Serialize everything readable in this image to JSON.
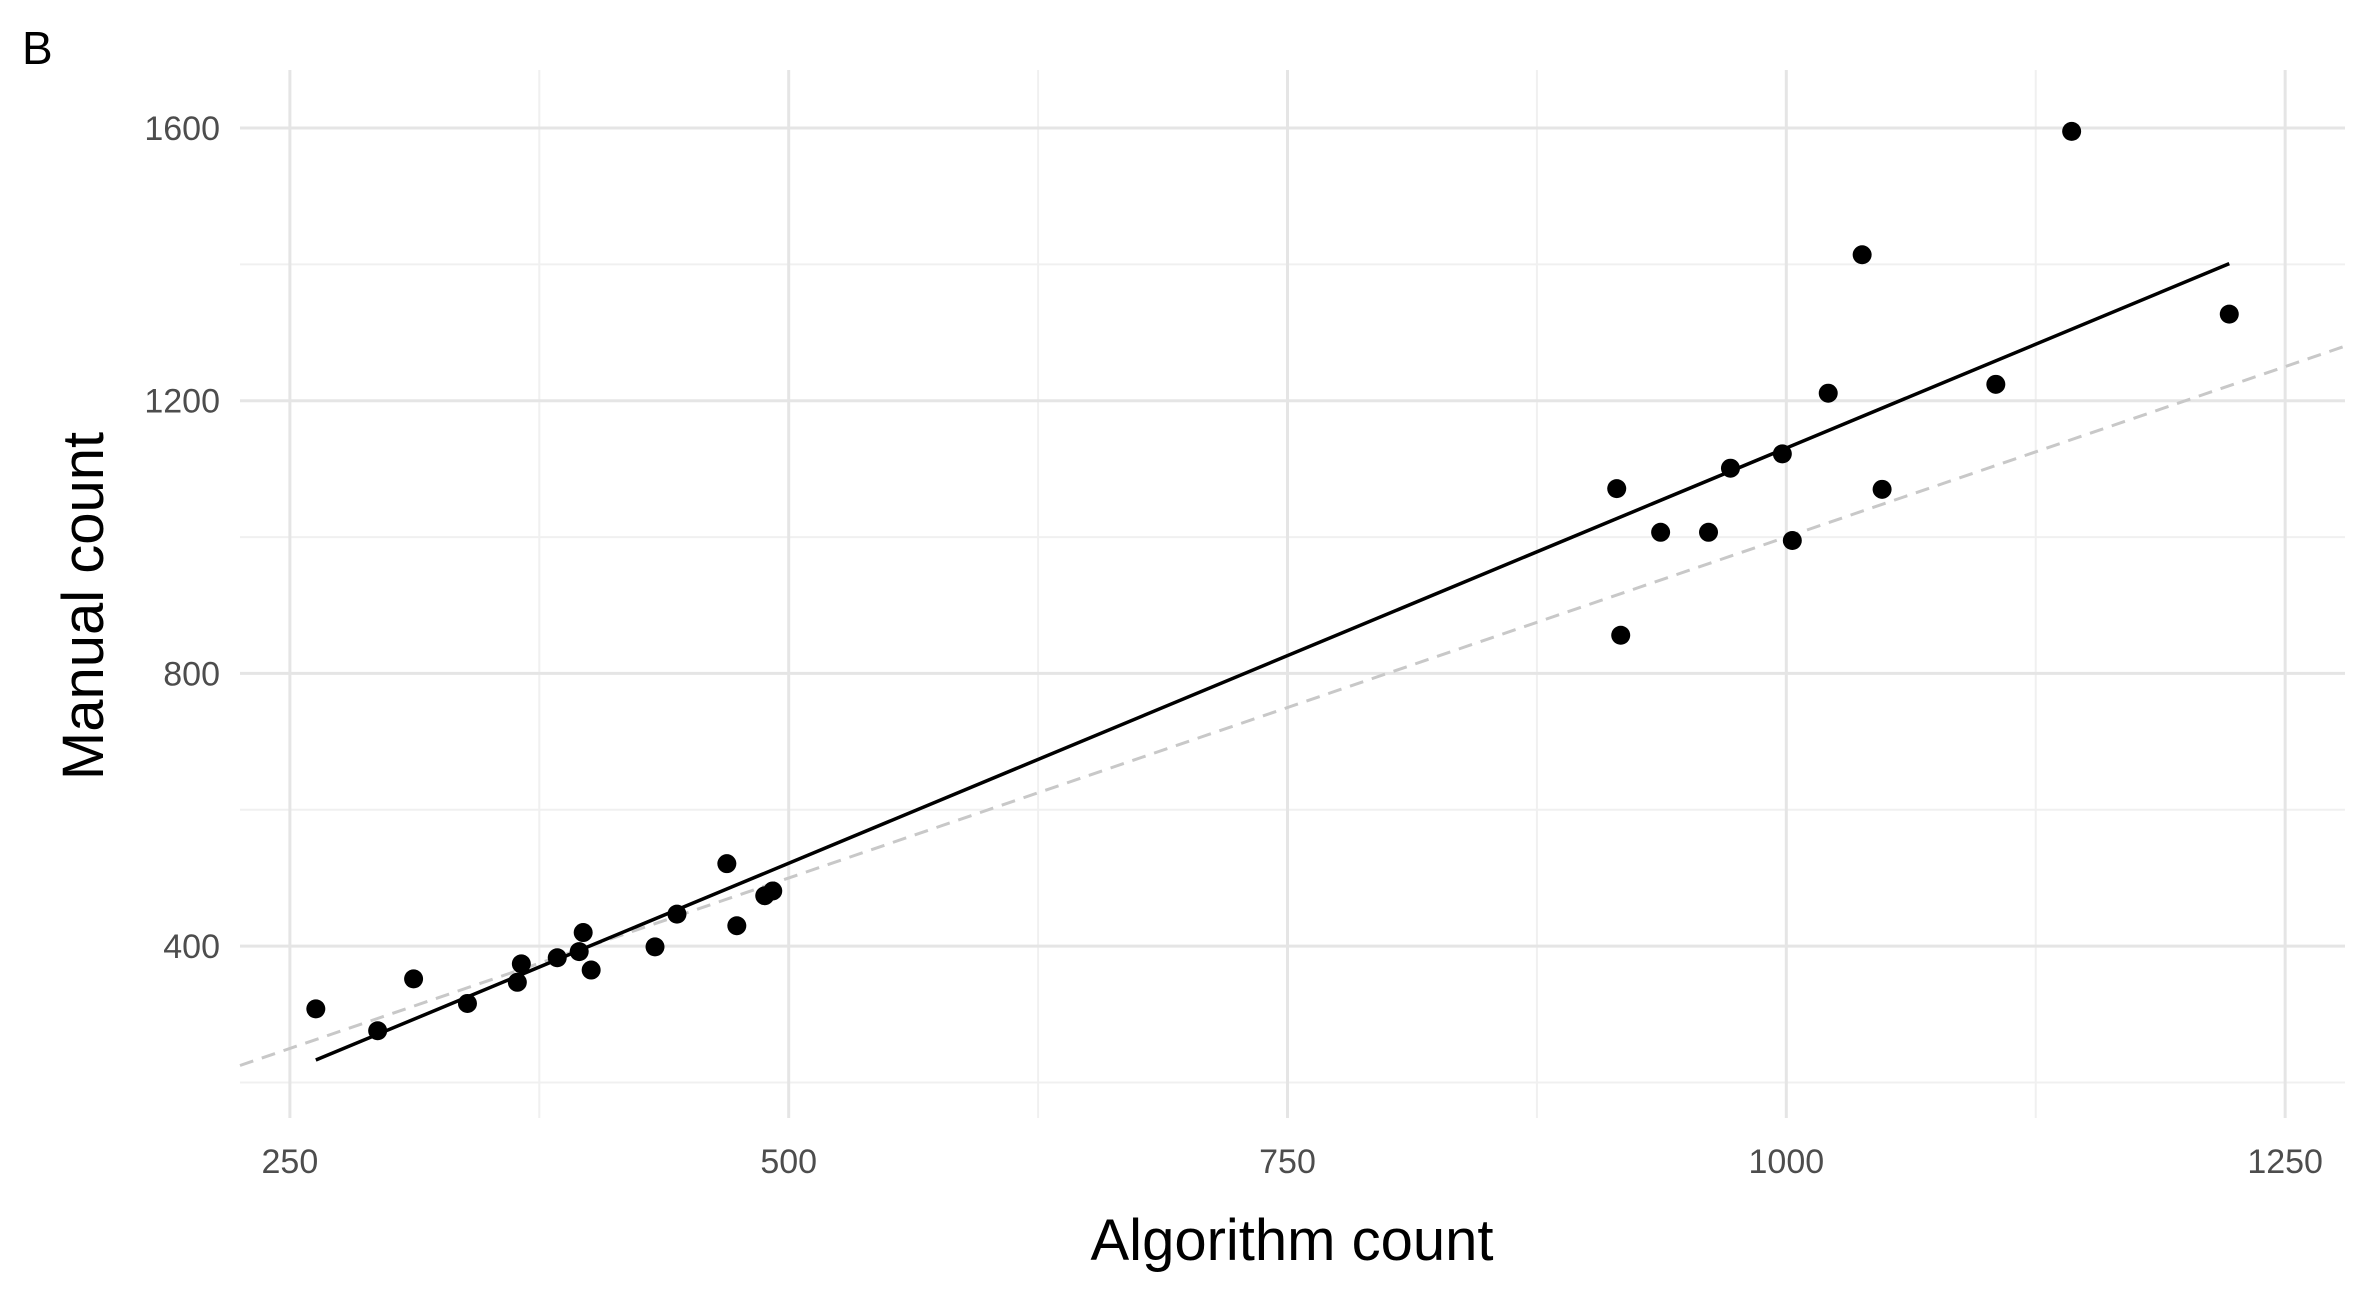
{
  "chart_data": {
    "type": "scatter",
    "panel_label": "B",
    "xlabel": "Algorithm count",
    "ylabel": "Manual count",
    "xlim": [
      225,
      1280
    ],
    "ylim": [
      148,
      1685
    ],
    "x_ticks": [
      250,
      500,
      750,
      1000,
      1250
    ],
    "x_minor": [
      375,
      625,
      875,
      1125
    ],
    "y_ticks": [
      400,
      800,
      1200,
      1600
    ],
    "y_minor": [
      200,
      600,
      1000,
      1400
    ],
    "grid": true,
    "colors": {
      "points": "#000000",
      "fit_line": "#000000",
      "identity_line": "#c8c8c8",
      "grid_major": "#e5e5e5",
      "grid_minor": "#f0f0f0"
    },
    "points": [
      {
        "x": 263,
        "y": 308
      },
      {
        "x": 294,
        "y": 276
      },
      {
        "x": 312,
        "y": 352
      },
      {
        "x": 339,
        "y": 316
      },
      {
        "x": 364,
        "y": 347
      },
      {
        "x": 366,
        "y": 374
      },
      {
        "x": 384,
        "y": 383
      },
      {
        "x": 395,
        "y": 392
      },
      {
        "x": 397,
        "y": 420
      },
      {
        "x": 401,
        "y": 365
      },
      {
        "x": 433,
        "y": 399
      },
      {
        "x": 444,
        "y": 447
      },
      {
        "x": 469,
        "y": 521
      },
      {
        "x": 474,
        "y": 430
      },
      {
        "x": 488,
        "y": 474
      },
      {
        "x": 492,
        "y": 481
      },
      {
        "x": 915,
        "y": 1071
      },
      {
        "x": 917,
        "y": 856
      },
      {
        "x": 937,
        "y": 1007
      },
      {
        "x": 961,
        "y": 1007
      },
      {
        "x": 972,
        "y": 1101
      },
      {
        "x": 998,
        "y": 1122
      },
      {
        "x": 1003,
        "y": 995
      },
      {
        "x": 1021,
        "y": 1211
      },
      {
        "x": 1038,
        "y": 1414
      },
      {
        "x": 1048,
        "y": 1070
      },
      {
        "x": 1105,
        "y": 1224
      },
      {
        "x": 1143,
        "y": 1595
      },
      {
        "x": 1222,
        "y": 1327
      }
    ],
    "fit_line": {
      "x": [
        263,
        1222
      ],
      "y": [
        233,
        1401
      ]
    },
    "identity_line": {
      "x": [
        225,
        1280
      ],
      "y": [
        225,
        1280
      ]
    }
  }
}
